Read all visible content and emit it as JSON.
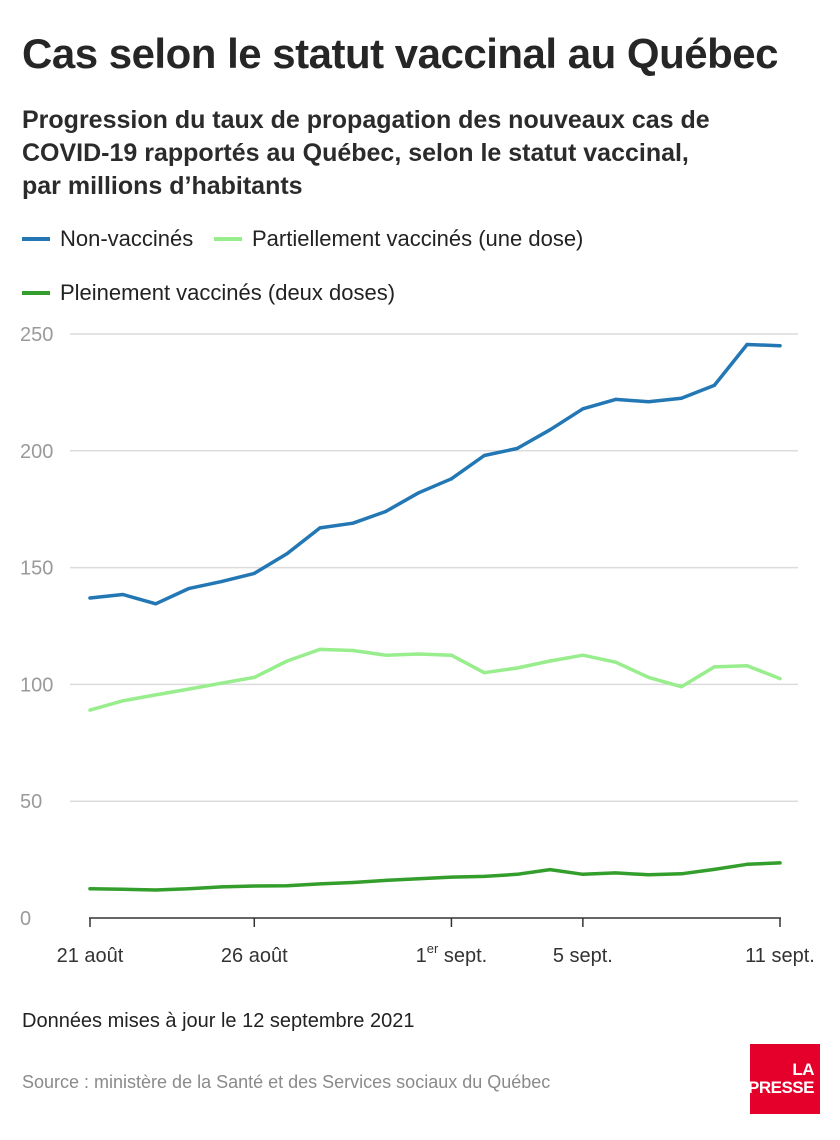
{
  "title": "Cas selon le statut vaccinal au Québec",
  "subtitle": "Progression du taux de propagation des nouveaux cas de COVID-19 rapportés au Québec, selon le statut vaccinal, par millions d’habitants",
  "note": "Données mises à jour le 12 septembre 2021",
  "source": "Source : ministère de la Santé et des Services sociaux du Québec",
  "logo": {
    "line1": "LA",
    "line2": "PRESSE"
  },
  "chart_data": {
    "type": "line",
    "x": [
      "21 août",
      "22 août",
      "23 août",
      "24 août",
      "25 août",
      "26 août",
      "27 août",
      "28 août",
      "29 août",
      "30 août",
      "31 août",
      "1er sept.",
      "2 sept.",
      "3 sept.",
      "4 sept.",
      "5 sept.",
      "6 sept.",
      "7 sept.",
      "8 sept.",
      "9 sept.",
      "10 sept.",
      "11 sept."
    ],
    "x_ticks": [
      {
        "index": 0,
        "label": "21 août"
      },
      {
        "index": 5,
        "label": "26 août"
      },
      {
        "index": 11,
        "label": "1",
        "sup": "er",
        "suffix": " sept."
      },
      {
        "index": 15,
        "label": "5 sept."
      },
      {
        "index": 21,
        "label": "11 sept."
      }
    ],
    "series": [
      {
        "name": "Non-vaccinés",
        "color": "#2277b4",
        "values": [
          137,
          138.5,
          134.5,
          141,
          144,
          147.5,
          156,
          167,
          169,
          174,
          182,
          188,
          198,
          201,
          209,
          218,
          222,
          221,
          222.5,
          228,
          245.5,
          245
        ]
      },
      {
        "name": "Partiellement vaccinés (une dose)",
        "color": "#98ed8c",
        "values": [
          89,
          93,
          95.5,
          98,
          100.5,
          103,
          110,
          115,
          114.5,
          112.5,
          113,
          112.5,
          105,
          107,
          110,
          112.5,
          109.5,
          103,
          99,
          107.5,
          108,
          102.5
        ]
      },
      {
        "name": "Pleinement vaccinés (deux doses)",
        "color": "#339e2c",
        "values": [
          12.5,
          12.3,
          12,
          12.5,
          13.3,
          13.7,
          13.8,
          14.6,
          15.2,
          16.1,
          16.8,
          17.5,
          17.8,
          18.7,
          20.7,
          18.7,
          19.3,
          18.5,
          18.9,
          20.8,
          23,
          23.6
        ]
      }
    ],
    "yticks": [
      0,
      50,
      100,
      150,
      200,
      250
    ],
    "ylim": [
      0,
      250
    ],
    "grid": true,
    "legend": "top-left"
  }
}
